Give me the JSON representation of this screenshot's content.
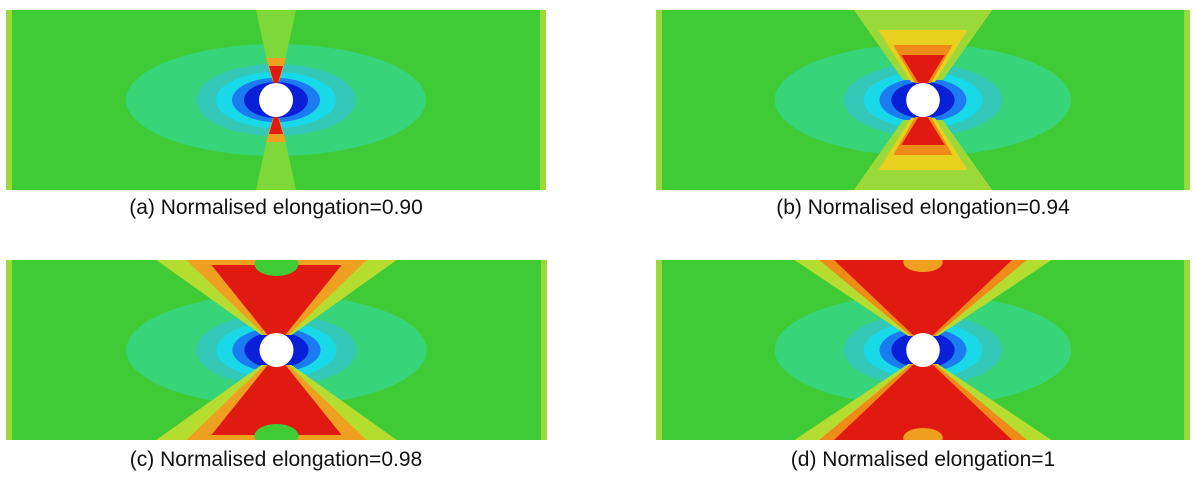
{
  "figure": {
    "panels": [
      {
        "caption": "(a) Normalised elongation=0.90"
      },
      {
        "caption": "(b) Normalised elongation=0.94"
      },
      {
        "caption": "(c) Normalised elongation=0.98"
      },
      {
        "caption": "(d) Normalised elongation=1"
      }
    ]
  }
}
